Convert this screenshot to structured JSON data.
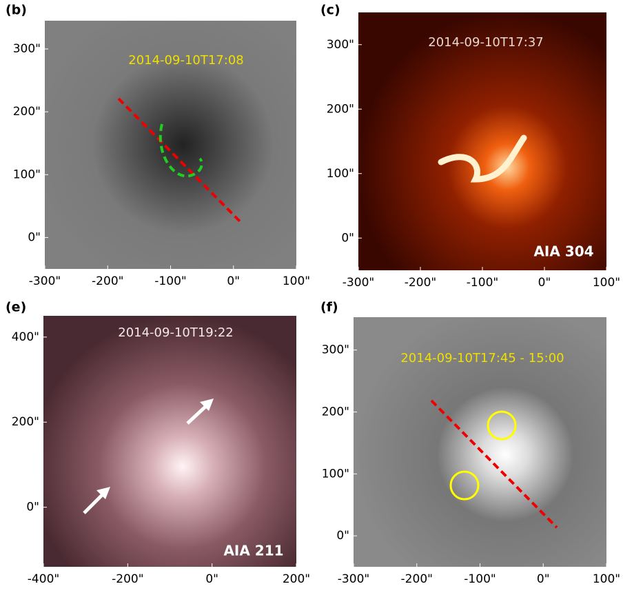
{
  "panels": [
    {
      "label": "(b)",
      "timestamp": "2014-09-10T17:08",
      "xlim": [
        -300,
        100
      ],
      "ylim": [
        -50,
        345
      ],
      "xticks": [
        {
          "value": -300,
          "label": "-300\""
        },
        {
          "value": -200,
          "label": "-200\""
        },
        {
          "value": -100,
          "label": "-100\""
        },
        {
          "value": 0,
          "label": "0\""
        },
        {
          "value": 100,
          "label": "100\""
        }
      ],
      "yticks": [
        {
          "value": 0,
          "label": "0\""
        },
        {
          "value": 100,
          "label": "100\""
        },
        {
          "value": 200,
          "label": "200\""
        },
        {
          "value": 300,
          "label": "300\""
        }
      ]
    },
    {
      "label": "(c)",
      "timestamp": "2014-09-10T17:37",
      "instrument": "AIA 304",
      "xlim": [
        -300,
        100
      ],
      "ylim": [
        -50,
        350
      ],
      "xticks": [
        {
          "value": -300,
          "label": "-300\""
        },
        {
          "value": -200,
          "label": "-200\""
        },
        {
          "value": -100,
          "label": "-100\""
        },
        {
          "value": 0,
          "label": "0\""
        },
        {
          "value": 100,
          "label": "100\""
        }
      ],
      "yticks": [
        {
          "value": 0,
          "label": "0\""
        },
        {
          "value": 100,
          "label": "100\""
        },
        {
          "value": 200,
          "label": "200\""
        },
        {
          "value": 300,
          "label": "300\""
        }
      ]
    },
    {
      "label": "(e)",
      "timestamp": "2014-09-10T19:22",
      "instrument": "AIA 211",
      "xlim": [
        -400,
        200
      ],
      "ylim": [
        -140,
        450
      ],
      "xticks": [
        {
          "value": -400,
          "label": "-400\""
        },
        {
          "value": -200,
          "label": "-200\""
        },
        {
          "value": 0,
          "label": "0\""
        },
        {
          "value": 200,
          "label": "200\""
        }
      ],
      "yticks": [
        {
          "value": 0,
          "label": "0\""
        },
        {
          "value": 200,
          "label": "200\""
        },
        {
          "value": 400,
          "label": "400\""
        }
      ]
    },
    {
      "label": "(f)",
      "timestamp": "2014-09-10T17:45 - 15:00",
      "xlim": [
        -300,
        100
      ],
      "ylim": [
        -50,
        353
      ],
      "xticks": [
        {
          "value": -300,
          "label": "-300\""
        },
        {
          "value": -200,
          "label": "-200\""
        },
        {
          "value": -100,
          "label": "-100\""
        },
        {
          "value": 0,
          "label": "0\""
        },
        {
          "value": 100,
          "label": "100\""
        }
      ],
      "yticks": [
        {
          "value": 0,
          "label": "0\""
        },
        {
          "value": 100,
          "label": "100\""
        },
        {
          "value": 200,
          "label": "200\""
        },
        {
          "value": 300,
          "label": "300\""
        }
      ]
    }
  ]
}
